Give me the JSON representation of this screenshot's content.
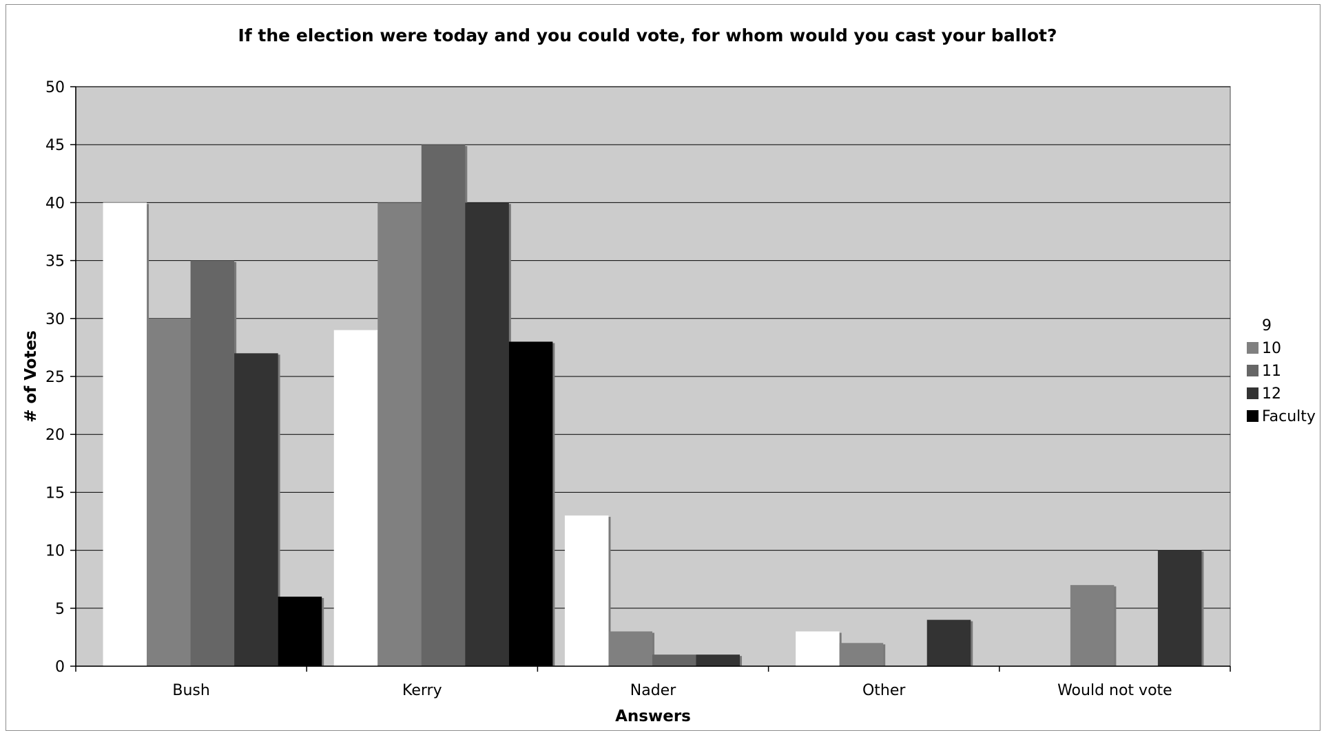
{
  "chart_data": {
    "type": "bar",
    "title": "If the election were today and you could vote, for whom would you cast your ballot?",
    "xlabel": "Answers",
    "ylabel": "# of Votes",
    "ylim": [
      0,
      50
    ],
    "ytick_step": 5,
    "grid": true,
    "legend_position": "right",
    "background": "#cccccc",
    "categories": [
      "Bush",
      "Kerry",
      "Nader",
      "Other",
      "Would not vote"
    ],
    "series": [
      {
        "name": "9",
        "color": "#ffffff",
        "values": [
          40,
          29,
          13,
          3,
          0
        ]
      },
      {
        "name": "10",
        "color": "#808080",
        "values": [
          30,
          40,
          3,
          2,
          7
        ]
      },
      {
        "name": "11",
        "color": "#666666",
        "values": [
          35,
          45,
          1,
          0,
          0
        ]
      },
      {
        "name": "12",
        "color": "#333333",
        "values": [
          27,
          40,
          1,
          4,
          10
        ]
      },
      {
        "name": "Faculty",
        "color": "#000000",
        "values": [
          6,
          28,
          0,
          0,
          0
        ]
      }
    ]
  }
}
